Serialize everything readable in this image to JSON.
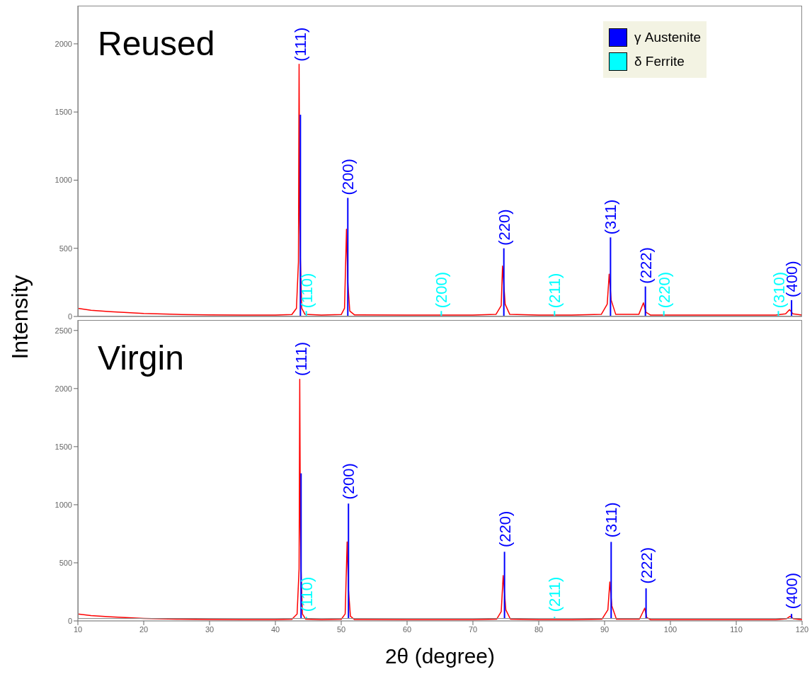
{
  "chart_data": [
    {
      "type": "line",
      "title": "Reused",
      "ylabel": "Intensity",
      "xlim": [
        10,
        120
      ],
      "xticks": [
        10,
        20,
        30,
        40,
        50,
        60,
        70,
        80,
        90,
        100,
        110,
        120
      ],
      "ylim": [
        0,
        2280
      ],
      "yticks": [
        0,
        500,
        1000,
        1500,
        2000
      ],
      "tick_labels": "y",
      "legend": "top right",
      "grid": false,
      "series": [
        {
          "color": "#ff0000",
          "x": [
            10,
            12,
            15,
            20,
            25,
            30,
            35,
            40,
            42.5,
            43.2,
            43.5,
            43.6,
            43.7,
            43.8,
            44,
            44.5,
            47,
            50,
            50.5,
            50.8,
            51,
            51.3,
            52,
            60,
            65,
            70,
            73.5,
            74.3,
            74.5,
            74.9,
            75.6,
            80,
            85,
            89.5,
            90.4,
            90.7,
            91,
            91.7,
            95.2,
            95.9,
            96.3,
            97,
            100,
            105,
            110,
            116,
            117.5,
            118.1,
            118.6,
            120
          ],
          "values": [
            60,
            45,
            35,
            22,
            15,
            12,
            10,
            10,
            14,
            60,
            400,
            1850,
            700,
            410,
            60,
            15,
            10,
            14,
            60,
            640,
            250,
            40,
            12,
            10,
            10,
            10,
            15,
            80,
            370,
            90,
            15,
            10,
            10,
            15,
            90,
            310,
            120,
            15,
            15,
            100,
            30,
            10,
            10,
            10,
            10,
            10,
            20,
            50,
            20,
            10
          ]
        },
        {
          "type": "bar",
          "name": "γ Austenite",
          "color": "#0000ff",
          "x": [
            43.8,
            51.0,
            74.7,
            90.9,
            96.2,
            118.4
          ],
          "values": [
            1480,
            870,
            500,
            580,
            220,
            120
          ]
        },
        {
          "type": "bar",
          "name": "δ Ferrite",
          "color": "#00ffff",
          "x": [
            44.7,
            65.2,
            82.4,
            99.0,
            116.4
          ],
          "values": [
            40,
            40,
            40,
            40,
            40
          ]
        }
      ],
      "annotations": [
        {
          "text": "(111)",
          "x": 43.8,
          "y": 1850
        },
        {
          "text": "(200)",
          "x": 51.0,
          "y": 870
        },
        {
          "text": "(220)",
          "x": 74.7,
          "y": 500
        },
        {
          "text": "(311)",
          "x": 90.9,
          "y": 580
        },
        {
          "text": "(222)",
          "x": 96.2,
          "y": 220
        },
        {
          "text": "(400)",
          "x": 118.4,
          "y": 120
        },
        {
          "text": "(110)",
          "x": 44.7,
          "y": 40
        },
        {
          "text": "(200)",
          "x": 65.2,
          "y": 40
        },
        {
          "text": "(211)",
          "x": 82.4,
          "y": 40
        },
        {
          "text": "(220)",
          "x": 99.0,
          "y": 40
        },
        {
          "text": "(310)",
          "x": 116.4,
          "y": 40
        }
      ]
    },
    {
      "type": "line",
      "title": "Virgin",
      "xlabel": "2θ (degree)",
      "xlim": [
        10,
        120
      ],
      "xticks": [
        10,
        20,
        30,
        40,
        50,
        60,
        70,
        80,
        90,
        100,
        110,
        120
      ],
      "ylim": [
        0,
        2590
      ],
      "yticks": [
        0,
        500,
        1000,
        1500,
        2000,
        2500
      ],
      "legend": false,
      "grid": false,
      "series": [
        {
          "color": "#ff0000",
          "x": [
            10,
            12,
            15,
            20,
            25,
            30,
            35,
            40,
            42.5,
            43.3,
            43.6,
            43.7,
            43.8,
            43.9,
            44.1,
            44.6,
            47,
            50,
            50.6,
            50.9,
            51.1,
            51.4,
            52,
            60,
            65,
            70,
            73.6,
            74.3,
            74.6,
            75.0,
            75.7,
            80,
            85,
            89.6,
            90.5,
            90.8,
            91.1,
            91.8,
            95.3,
            96.1,
            96.4,
            97,
            100,
            105,
            110,
            116,
            117.6,
            118.2,
            118.7,
            120
          ],
          "values": [
            60,
            45,
            35,
            22,
            15,
            12,
            10,
            10,
            14,
            60,
            450,
            2080,
            800,
            430,
            60,
            15,
            10,
            14,
            60,
            680,
            270,
            40,
            12,
            10,
            10,
            10,
            15,
            80,
            390,
            95,
            15,
            10,
            10,
            15,
            95,
            335,
            130,
            15,
            15,
            110,
            30,
            10,
            10,
            10,
            10,
            10,
            18,
            40,
            18,
            10
          ]
        },
        {
          "type": "bar",
          "color": "#0000ff",
          "x": [
            43.9,
            51.1,
            74.8,
            91.0,
            96.3,
            118.4
          ],
          "values": [
            1270,
            1010,
            595,
            680,
            280,
            60
          ]
        },
        {
          "type": "bar",
          "color": "#00ffff",
          "x": [
            44.7,
            82.4
          ],
          "values": [
            35,
            35
          ]
        }
      ],
      "annotations": [
        {
          "text": "(111)",
          "x": 43.9,
          "y": 2080
        },
        {
          "text": "(200)",
          "x": 51.1,
          "y": 1010
        },
        {
          "text": "(220)",
          "x": 74.8,
          "y": 595
        },
        {
          "text": "(311)",
          "x": 91.0,
          "y": 680
        },
        {
          "text": "(222)",
          "x": 96.3,
          "y": 280
        },
        {
          "text": "(400)",
          "x": 118.4,
          "y": 60
        },
        {
          "text": "(110)",
          "x": 44.7,
          "y": 35
        },
        {
          "text": "(211)",
          "x": 82.4,
          "y": 35
        }
      ]
    }
  ]
}
